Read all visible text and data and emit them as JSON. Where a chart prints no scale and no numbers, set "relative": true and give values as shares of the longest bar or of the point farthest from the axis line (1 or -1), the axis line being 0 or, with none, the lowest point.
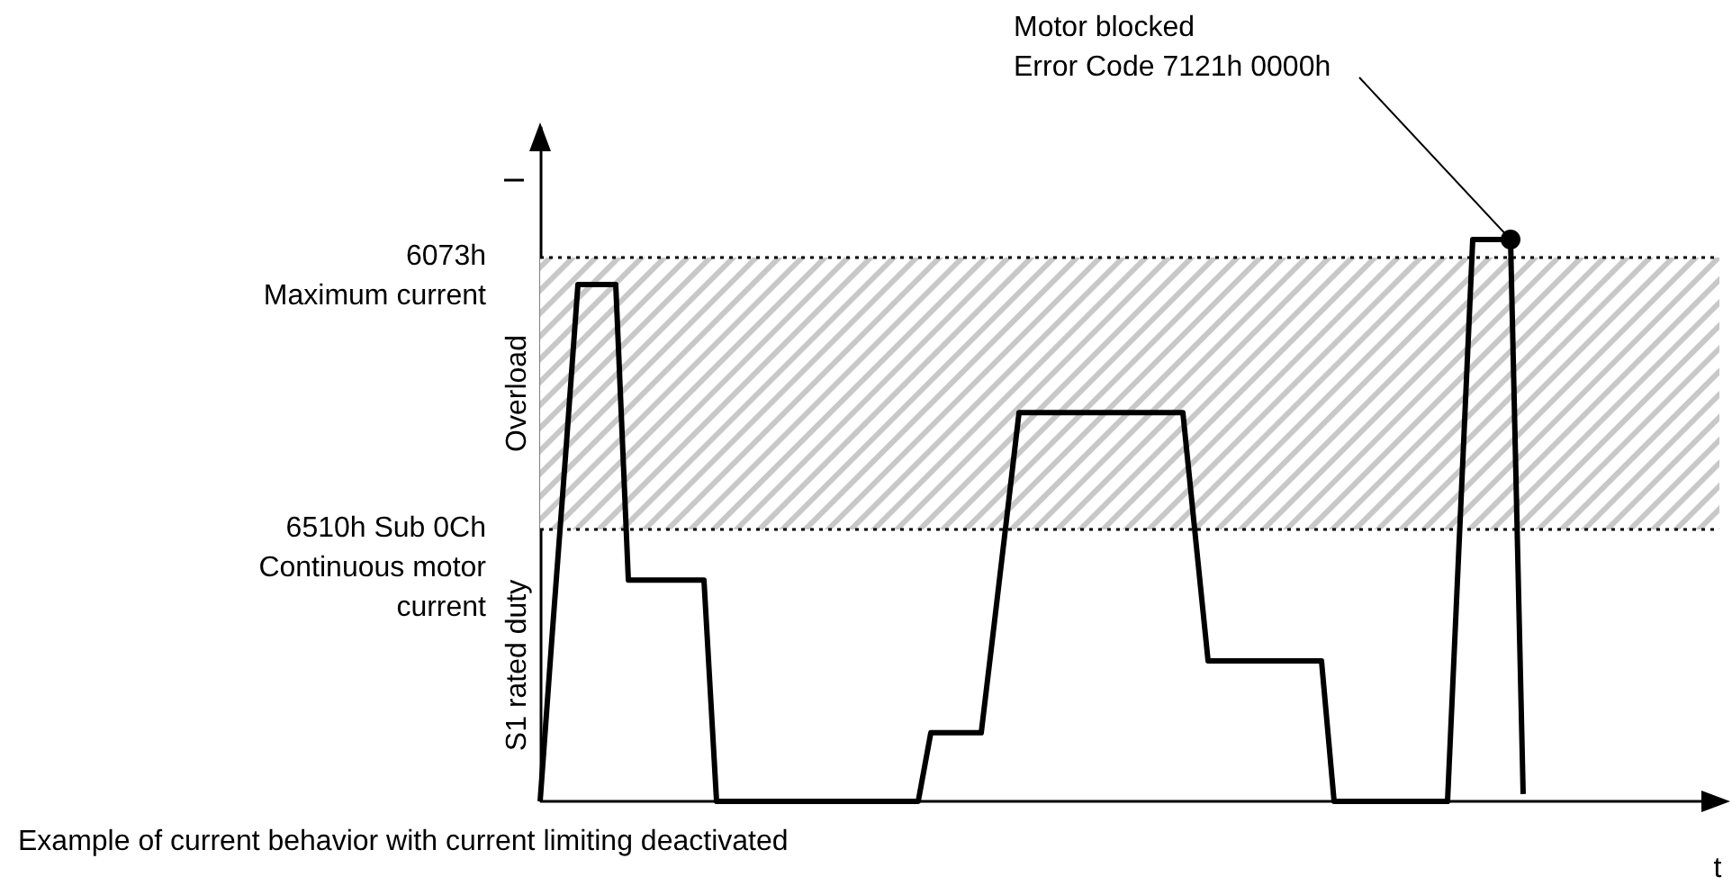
{
  "chart_data": {
    "type": "line",
    "relative": true,
    "ylabel": "I",
    "categories": [
      null,
      null,
      null,
      null,
      null,
      null,
      null,
      null,
      null,
      null,
      null,
      null,
      null,
      null,
      null,
      null,
      null,
      null,
      null,
      null,
      null,
      null,
      null,
      null,
      null,
      null,
      null,
      null,
      null,
      null,
      null,
      null,
      null,
      null,
      null,
      null,
      null,
      null,
      null,
      null,
      null,
      null,
      null,
      null,
      null,
      null,
      null,
      null,
      null,
      null,
      null,
      null,
      null,
      null,
      null,
      null,
      null,
      null,
      null,
      null,
      null,
      null,
      null,
      null,
      null,
      null,
      null,
      null,
      null,
      null,
      null,
      null,
      null,
      null,
      null,
      null,
      null,
      null,
      null
    ],
    "series": [
      {
        "color": "#000000",
        "values": [
          0,
          0.31,
          0.61,
          0.92,
          0.92,
          0.92,
          0.92,
          0.394,
          0.394,
          0.394,
          0.394,
          0.394,
          0.394,
          0.394,
          0,
          0,
          0,
          0,
          0,
          0,
          0,
          0,
          0,
          0,
          0,
          0,
          0,
          0,
          0,
          0,
          0,
          0.122,
          0.122,
          0.122,
          0.122,
          0.122,
          0.31,
          0.5,
          0.692,
          0.692,
          0.692,
          0.692,
          0.692,
          0.692,
          0.692,
          0.692,
          0.692,
          0.692,
          0.692,
          0.692,
          0.692,
          0.692,
          0.47,
          0.25,
          0.25,
          0.25,
          0.25,
          0.25,
          0.25,
          0.25,
          0.25,
          0.25,
          0.25,
          0,
          0,
          0,
          0,
          0,
          0,
          0,
          0,
          0,
          0,
          0.5,
          1,
          1,
          1,
          1,
          0.013
        ]
      }
    ],
    "line_style": "solid",
    "marker": "none",
    "ref_lines": [
      {
        "axis": "y",
        "value": 0.968,
        "label": "6073h\nMaximum current",
        "line_style": "dotted",
        "color": "#000000"
      },
      {
        "axis": "y",
        "value": 0.484,
        "label": "6510h Sub 0Ch\nContinuous motor\ncurrent",
        "line_style": "dotted",
        "color": "#000000"
      }
    ],
    "bands": [
      {
        "axis": "y",
        "from": 0.484,
        "to": 0.968,
        "label": "Overload",
        "color": "#c8c8c8"
      }
    ],
    "annotations": [
      "S1 rated duty",
      "Motor blocked\nError Code 7121h 0000h",
      "Example of current behavior with current limiting deactivated",
      "t"
    ]
  }
}
